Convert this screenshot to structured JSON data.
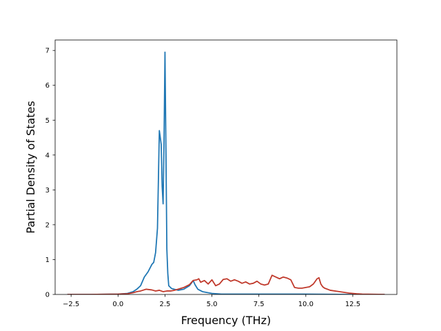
{
  "chart_data": {
    "type": "line",
    "title": "",
    "xlabel": "Frequency (THz)",
    "ylabel": "Partial Density of States",
    "xlim": [
      -3.35,
      14.85
    ],
    "ylim": [
      0,
      7.3
    ],
    "xticks": [
      -2.5,
      0.0,
      2.5,
      5.0,
      7.5,
      10.0,
      12.5
    ],
    "xtick_labels": [
      "−2.5",
      "0.0",
      "2.5",
      "5.0",
      "7.5",
      "10.0",
      "12.5"
    ],
    "yticks": [
      0,
      1,
      2,
      3,
      4,
      5,
      6,
      7
    ],
    "ytick_labels": [
      "0",
      "1",
      "2",
      "3",
      "4",
      "5",
      "6",
      "7"
    ],
    "grid": false,
    "legend": "none",
    "series": [
      {
        "color": "#1f77b4",
        "x": [
          -2.7,
          -1.5,
          0.0,
          0.5,
          0.8,
          1.0,
          1.2,
          1.4,
          1.6,
          1.8,
          1.9,
          2.0,
          2.1,
          2.2,
          2.3,
          2.35,
          2.4,
          2.45,
          2.5,
          2.55,
          2.6,
          2.65,
          2.7,
          2.85,
          3.2,
          3.5,
          3.8,
          3.9,
          4.0,
          4.1,
          4.25,
          4.5,
          5.0,
          5.5,
          7.5,
          10.0,
          12.5,
          14.2
        ],
        "y": [
          0,
          0,
          0.01,
          0.03,
          0.08,
          0.15,
          0.25,
          0.5,
          0.65,
          0.86,
          0.92,
          1.2,
          1.9,
          4.7,
          4.3,
          3.1,
          2.6,
          4.4,
          6.95,
          4.2,
          1.3,
          0.6,
          0.25,
          0.17,
          0.12,
          0.15,
          0.25,
          0.32,
          0.4,
          0.28,
          0.15,
          0.08,
          0.03,
          0.01,
          0.01,
          0.01,
          0,
          0
        ]
      },
      {
        "color": "#c0392b",
        "x": [
          -2.7,
          -1.5,
          0.0,
          0.5,
          0.8,
          1.0,
          1.2,
          1.5,
          1.8,
          2.0,
          2.2,
          2.4,
          2.6,
          2.8,
          3.0,
          3.2,
          3.5,
          3.8,
          4.0,
          4.2,
          4.3,
          4.4,
          4.6,
          4.8,
          5.0,
          5.2,
          5.4,
          5.6,
          5.8,
          6.0,
          6.2,
          6.4,
          6.6,
          6.8,
          7.0,
          7.2,
          7.4,
          7.6,
          7.8,
          8.0,
          8.2,
          8.4,
          8.6,
          8.8,
          9.0,
          9.2,
          9.4,
          9.6,
          9.8,
          10.0,
          10.2,
          10.4,
          10.6,
          10.7,
          10.8,
          10.9,
          11.0,
          11.3,
          11.8,
          12.3,
          12.7,
          13.0,
          14.2
        ],
        "y": [
          0,
          0,
          0.01,
          0.02,
          0.05,
          0.08,
          0.1,
          0.15,
          0.13,
          0.1,
          0.12,
          0.08,
          0.1,
          0.1,
          0.12,
          0.15,
          0.2,
          0.28,
          0.4,
          0.42,
          0.45,
          0.35,
          0.4,
          0.3,
          0.42,
          0.25,
          0.3,
          0.43,
          0.45,
          0.38,
          0.42,
          0.38,
          0.32,
          0.36,
          0.3,
          0.32,
          0.38,
          0.3,
          0.27,
          0.3,
          0.55,
          0.5,
          0.45,
          0.5,
          0.47,
          0.42,
          0.2,
          0.18,
          0.18,
          0.2,
          0.22,
          0.3,
          0.45,
          0.48,
          0.3,
          0.22,
          0.18,
          0.12,
          0.08,
          0.04,
          0.02,
          0.01,
          0
        ]
      }
    ]
  }
}
